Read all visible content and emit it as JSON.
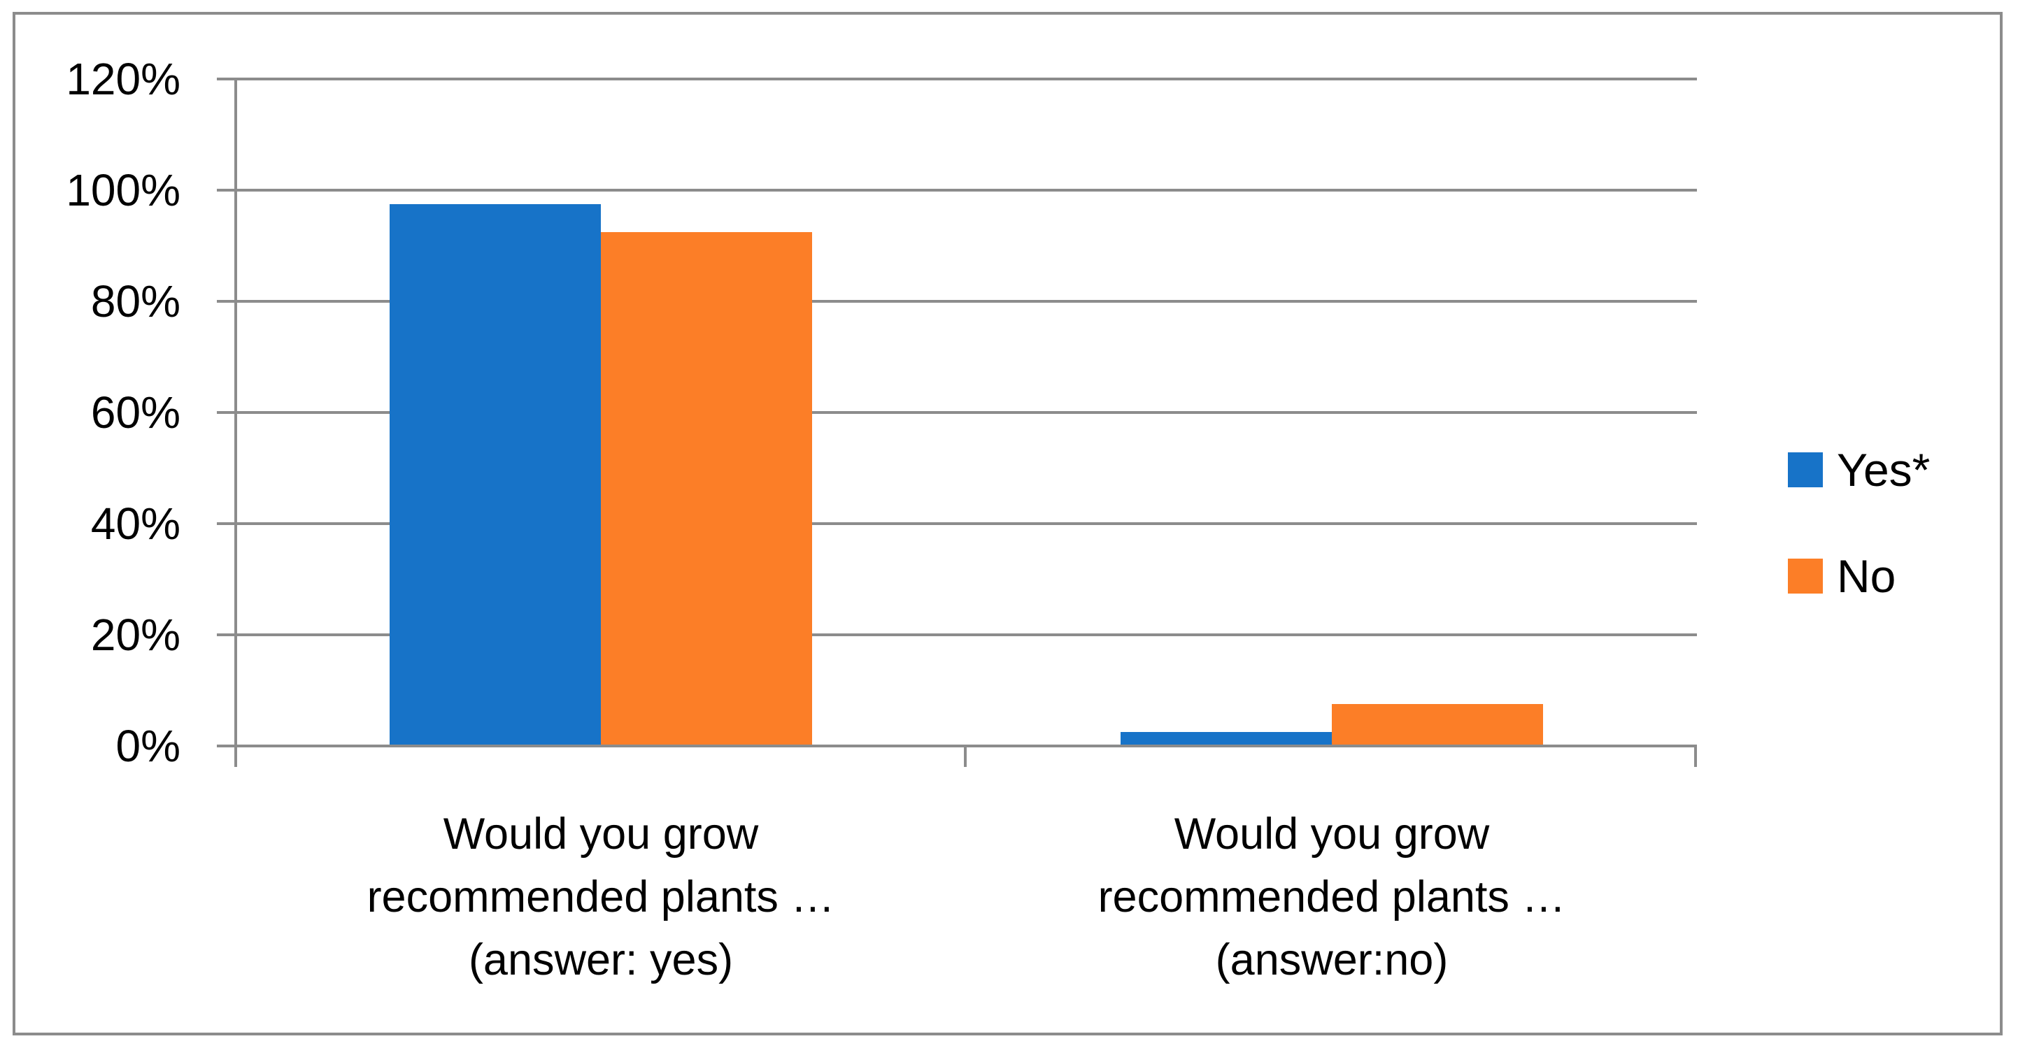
{
  "chart_data": {
    "type": "bar",
    "categories": [
      {
        "lines": [
          "Would you grow",
          "recommended plants …",
          "(answer: yes)"
        ]
      },
      {
        "lines": [
          "Would you grow",
          "recommended plants …",
          "(answer:no)"
        ]
      }
    ],
    "series": [
      {
        "name": "Yes*",
        "color": "#1773C8",
        "values": [
          97.5,
          2.5
        ]
      },
      {
        "name": "No",
        "color": "#FC7E27",
        "values": [
          92.5,
          7.5
        ]
      }
    ],
    "y_axis": {
      "ticks": [
        "120%",
        "100%",
        "80%",
        "60%",
        "40%",
        "20%",
        "0%"
      ],
      "min": 0,
      "max": 120,
      "step": 20,
      "format": "percent"
    },
    "grid": true,
    "legend_position": "right"
  },
  "colors": {
    "line_gray": "#8C8C8C",
    "background": "#FFFFFF",
    "text": "#000000"
  }
}
